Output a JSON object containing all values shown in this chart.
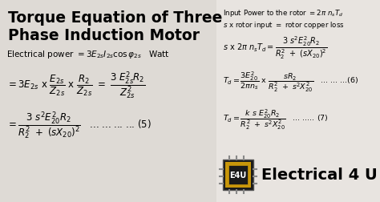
{
  "bg_color": "#3a3545",
  "text_color": "#f0ece8",
  "eq_color": "#1a1520",
  "left_bg": "#e8e4e0",
  "right_bg": "#e8e4e0",
  "title_line1": "Torque Equation of Three",
  "title_line2": "Phase Induction Motor",
  "title_fontsize": 14,
  "figsize": [
    4.74,
    2.53
  ],
  "dpi": 100
}
